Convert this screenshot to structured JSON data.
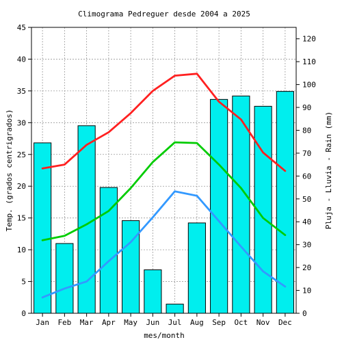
{
  "chart_data": {
    "type": "bar",
    "title": "Climograma Pedreguer desde 2004 a 2025",
    "xlabel": "mes/month",
    "ylabel": "Temp. (grados centrigrados)",
    "y2label": "Pluja - Lluvia - Rain (mm)",
    "ylim": [
      0,
      45
    ],
    "y2lim": [
      0,
      125
    ],
    "yticks": [
      0,
      5,
      10,
      15,
      20,
      25,
      30,
      35,
      40,
      45
    ],
    "y2ticks": [
      0,
      10,
      20,
      30,
      40,
      50,
      60,
      70,
      80,
      90,
      100,
      110,
      120
    ],
    "categories": [
      "Jan",
      "Feb",
      "Mar",
      "Apr",
      "May",
      "Jun",
      "Jul",
      "Aug",
      "Sep",
      "Oct",
      "Nov",
      "Dec"
    ],
    "grid": true,
    "rain": {
      "axis": "right",
      "color": "#00eeee",
      "values": [
        74.5,
        30.5,
        82.0,
        55.0,
        40.5,
        19.0,
        4.0,
        39.5,
        93.5,
        95.0,
        90.5,
        97.0
      ]
    },
    "series": [
      {
        "color": "#ff2020",
        "values": [
          22.8,
          23.4,
          26.5,
          28.5,
          31.5,
          35.0,
          37.4,
          37.7,
          33.3,
          30.5,
          25.3,
          22.4
        ]
      },
      {
        "color": "#00cc00",
        "values": [
          11.5,
          12.2,
          14.0,
          16.1,
          19.7,
          23.8,
          26.9,
          26.8,
          23.4,
          19.7,
          15.0,
          12.3
        ]
      },
      {
        "color": "#3399ff",
        "values": [
          2.5,
          3.9,
          5.0,
          8.2,
          11.2,
          15.1,
          19.2,
          18.5,
          14.5,
          10.5,
          6.6,
          4.2
        ]
      }
    ]
  }
}
